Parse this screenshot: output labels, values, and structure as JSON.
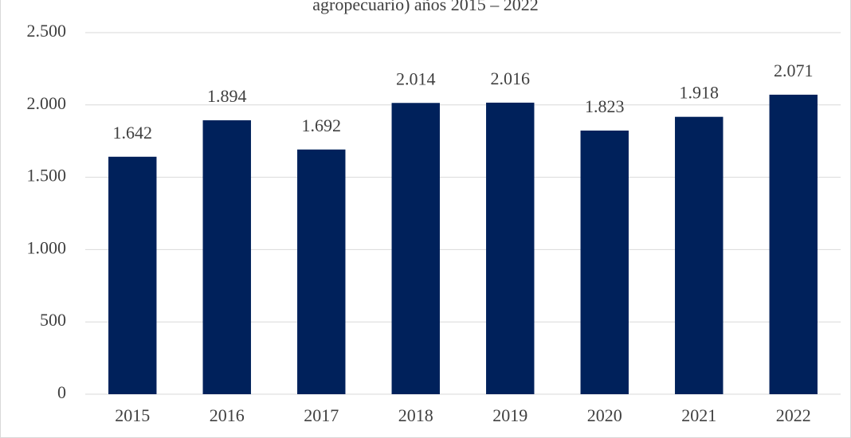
{
  "chart_data": {
    "type": "bar",
    "title": "agropecuario) años 2015 – 2022",
    "categories": [
      "2015",
      "2016",
      "2017",
      "2018",
      "2019",
      "2020",
      "2021",
      "2022"
    ],
    "values": [
      1642,
      1894,
      1692,
      2014,
      2016,
      1823,
      1918,
      2071
    ],
    "value_labels": [
      "1.642",
      "1.894",
      "1.692",
      "2.014",
      "2.016",
      "1.823",
      "1.918",
      "2.071"
    ],
    "color": "#00215b",
    "ylim": [
      0,
      2500
    ],
    "yticks": [
      0,
      500,
      {
        "value": 1000,
        "label": "1.000"
      },
      {
        "value": 1500,
        "label": "1.500"
      },
      {
        "value": 2000,
        "label": "2.000"
      },
      {
        "value": 2500,
        "label": "2.500"
      }
    ],
    "grid": true
  }
}
